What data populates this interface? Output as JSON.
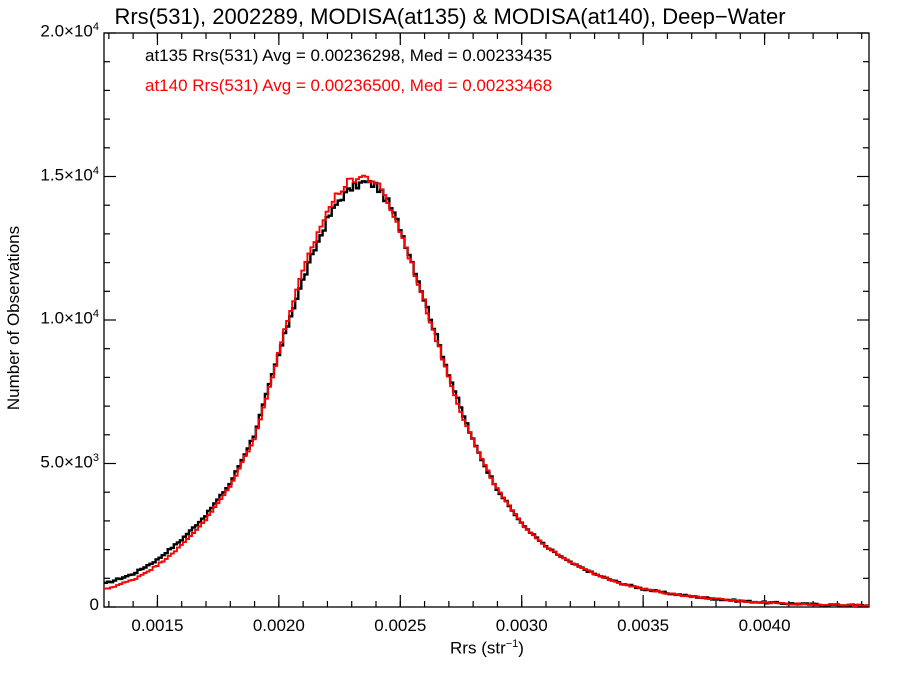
{
  "chart_data": {
    "type": "line",
    "step": true,
    "title": "Rrs(531), 2002289, MODISA(at135) & MODISA(at140), Deep−Water",
    "xlabel_main": "Rrs (str",
    "xlabel_exp": "−1",
    "xlabel_close": ")",
    "ylabel": "Number of Observations",
    "xlim": [
      0.00128,
      0.00443
    ],
    "ylim": [
      0,
      20000
    ],
    "grid": false,
    "x_ticks": [
      {
        "value": 0.0015,
        "label": "0.0015"
      },
      {
        "value": 0.002,
        "label": "0.0020"
      },
      {
        "value": 0.0025,
        "label": "0.0025"
      },
      {
        "value": 0.003,
        "label": "0.0030"
      },
      {
        "value": 0.0035,
        "label": "0.0035"
      },
      {
        "value": 0.004,
        "label": "0.0040"
      }
    ],
    "y_ticks": [
      {
        "value": 0,
        "mant": "0",
        "exp": ""
      },
      {
        "value": 5000,
        "mant": "5.0×10",
        "exp": "3"
      },
      {
        "value": 10000,
        "mant": "1.0×10",
        "exp": "4"
      },
      {
        "value": 15000,
        "mant": "1.5×10",
        "exp": "4"
      },
      {
        "value": 20000,
        "mant": "2.0×10",
        "exp": "4"
      }
    ],
    "annotations": [
      {
        "text": "at135 Rrs(531) Avg = 0.00236298, Med = 0.00233435",
        "color": "#000000"
      },
      {
        "text": "at140 Rrs(531) Avg = 0.00236500, Med = 0.00233468",
        "color": "#ff0000"
      }
    ],
    "series": [
      {
        "color": "#000000",
        "x": [
          0.00128,
          0.0014,
          0.0015,
          0.0016,
          0.0017,
          0.0018,
          0.0019,
          0.00195,
          0.002,
          0.00205,
          0.0021,
          0.00215,
          0.0022,
          0.00225,
          0.0023,
          0.00235,
          0.0024,
          0.00245,
          0.0025,
          0.00255,
          0.0026,
          0.00265,
          0.0027,
          0.00275,
          0.0028,
          0.00285,
          0.0029,
          0.003,
          0.0031,
          0.0032,
          0.0033,
          0.0034,
          0.0035,
          0.0036,
          0.0037,
          0.0038,
          0.0039,
          0.004,
          0.0041,
          0.0042,
          0.0043,
          0.00443
        ],
        "y": [
          800,
          1150,
          1650,
          2350,
          3200,
          4300,
          6000,
          7400,
          8800,
          10200,
          11400,
          12500,
          13500,
          14200,
          14600,
          14800,
          14700,
          14100,
          13200,
          12000,
          10700,
          9400,
          8100,
          6900,
          5800,
          4900,
          4100,
          2900,
          2100,
          1550,
          1150,
          850,
          630,
          480,
          370,
          280,
          210,
          160,
          120,
          90,
          70,
          50
        ]
      },
      {
        "color": "#ff0000",
        "x": [
          0.00128,
          0.0014,
          0.0015,
          0.0016,
          0.0017,
          0.0018,
          0.0019,
          0.00195,
          0.002,
          0.00205,
          0.0021,
          0.00215,
          0.0022,
          0.00225,
          0.0023,
          0.00235,
          0.0024,
          0.00245,
          0.0025,
          0.00255,
          0.0026,
          0.00265,
          0.0027,
          0.00275,
          0.0028,
          0.00285,
          0.0029,
          0.003,
          0.0031,
          0.0032,
          0.0033,
          0.0034,
          0.0035,
          0.0036,
          0.0037,
          0.0038,
          0.0039,
          0.004,
          0.0041,
          0.0042,
          0.0043,
          0.00443
        ],
        "y": [
          600,
          950,
          1450,
          2150,
          3050,
          4200,
          5900,
          7300,
          8900,
          10400,
          11700,
          12800,
          13800,
          14500,
          14900,
          15000,
          14800,
          14100,
          13100,
          11900,
          10600,
          9300,
          8000,
          6800,
          5800,
          4900,
          4100,
          2900,
          2100,
          1550,
          1150,
          850,
          630,
          480,
          370,
          280,
          210,
          160,
          120,
          90,
          70,
          50
        ]
      }
    ]
  }
}
